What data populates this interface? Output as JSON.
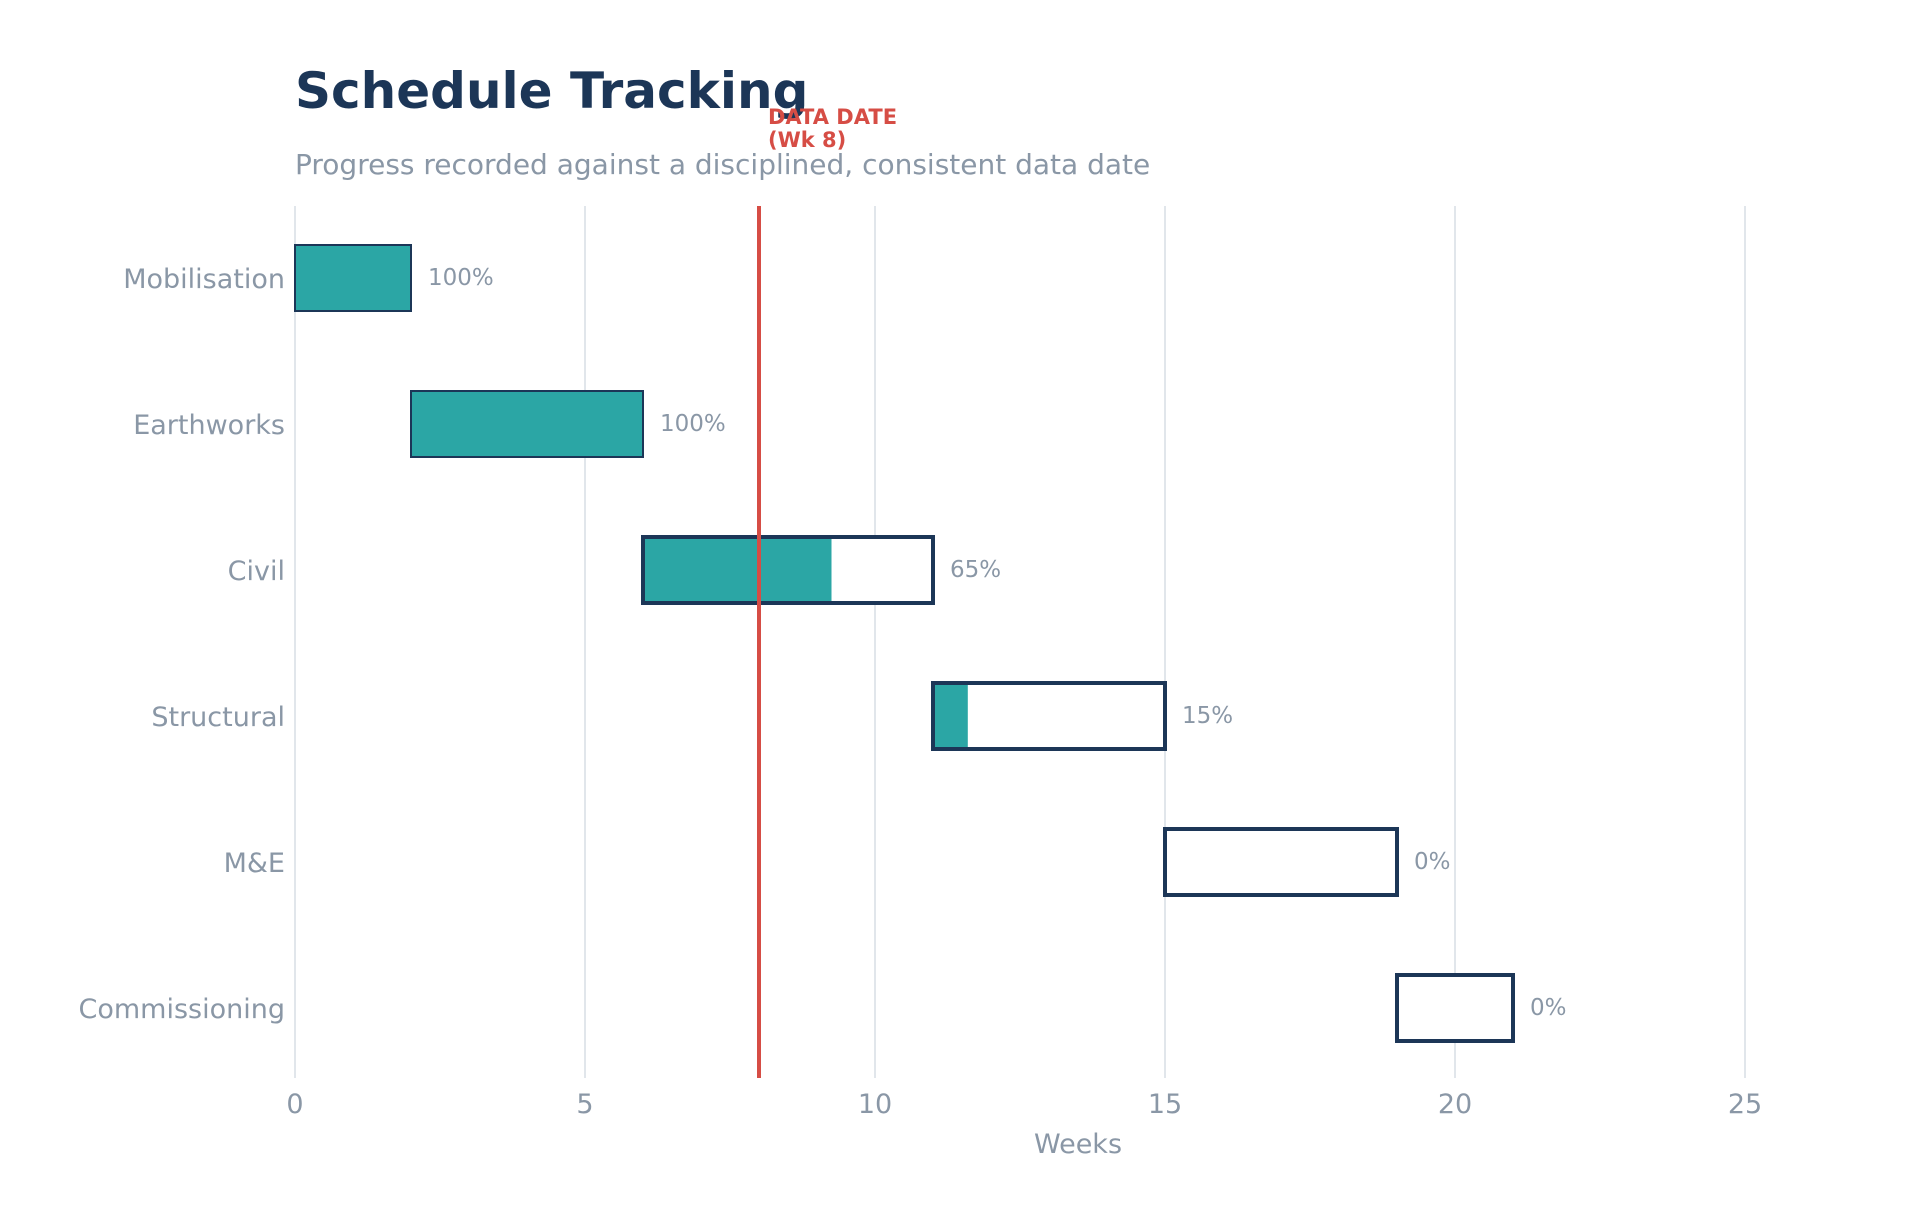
{
  "chart_data": {
    "type": "bar",
    "title": "Schedule Tracking",
    "subtitle": "Progress recorded against a disciplined, consistent data date",
    "xlabel": "Weeks",
    "ylabel": "",
    "xlim": [
      0,
      27
    ],
    "xticks": [
      0,
      5,
      10,
      15,
      20,
      25
    ],
    "grid": "vertical",
    "categories": [
      "Mobilisation",
      "Earthworks",
      "Civil",
      "Structural",
      "M&E",
      "Commissioning"
    ],
    "tasks": [
      {
        "name": "Mobilisation",
        "start": 0,
        "end": 2,
        "progress": 100,
        "label": "100%"
      },
      {
        "name": "Earthworks",
        "start": 2,
        "end": 6,
        "progress": 100,
        "label": "100%"
      },
      {
        "name": "Civil",
        "start": 6,
        "end": 11,
        "progress": 65,
        "label": "65%"
      },
      {
        "name": "Structural",
        "start": 11,
        "end": 15,
        "progress": 15,
        "label": "15%"
      },
      {
        "name": "M&E",
        "start": 15,
        "end": 19,
        "progress": 0,
        "label": "0%"
      },
      {
        "name": "Commissioning",
        "start": 19,
        "end": 21,
        "progress": 0,
        "label": "0%"
      }
    ],
    "data_date": {
      "week": 8,
      "label_line1": "DATA DATE",
      "label_line2": "(Wk 8)"
    },
    "colors": {
      "progress_fill": "#2ba6a5",
      "outline": "#1c3657",
      "data_date": "#d64d45",
      "grid": "#e1e6eb",
      "text_muted": "#8a97a6",
      "title": "#1c3657"
    }
  }
}
